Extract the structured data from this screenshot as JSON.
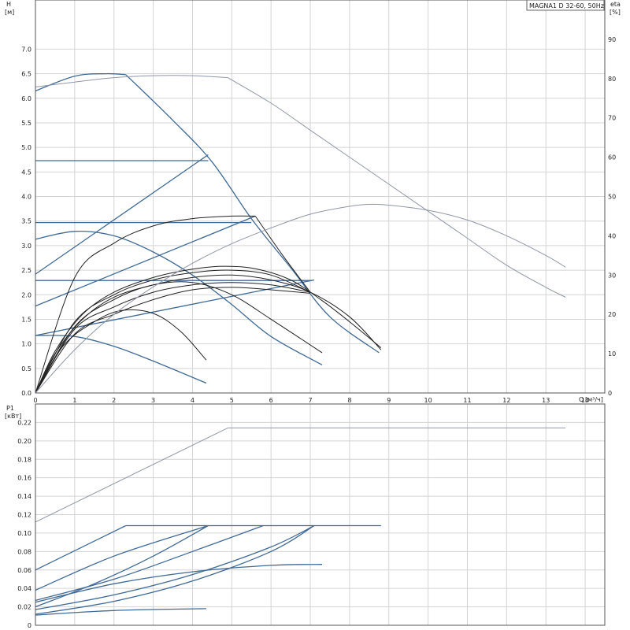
{
  "chart_data": [
    {
      "type": "line",
      "panel": "head",
      "title": "MAGNA1 D 32-60, 50Hz",
      "y_label": "H",
      "y_unit": "[м]",
      "y2_label": "eta",
      "y2_unit": "[%]",
      "x_label": "Q",
      "x_unit": "[м³/ч]",
      "xlim": [
        0,
        14.5
      ],
      "ylim": [
        0,
        8.0
      ],
      "y2lim": [
        0,
        100
      ],
      "x_ticks": [
        0,
        1,
        2,
        3,
        4,
        5,
        6,
        7,
        8,
        9,
        10,
        11,
        12,
        13,
        14
      ],
      "x_tick_labels": [
        "0",
        "1",
        "2",
        "3",
        "4",
        "5",
        "6",
        "7",
        "8",
        "9",
        "10",
        "11",
        "12",
        "13",
        "14"
      ],
      "y_ticks": [
        0,
        0.5,
        1.0,
        1.5,
        2.0,
        2.5,
        3.0,
        3.5,
        4.0,
        4.5,
        5.0,
        5.5,
        6.0,
        6.5,
        7.0
      ],
      "y_tick_labels": [
        "0.0",
        "0.5",
        "1.0",
        "1.5",
        "2.0",
        "2.5",
        "3.0",
        "3.5",
        "4.0",
        "4.5",
        "5.0",
        "5.5",
        "6.0",
        "6.5",
        "7.0"
      ],
      "y2_ticks": [
        0,
        10,
        20,
        30,
        40,
        50,
        60,
        70,
        80,
        90
      ],
      "y2_tick_labels": [
        "0",
        "10",
        "20",
        "30",
        "40",
        "50",
        "60",
        "70",
        "80",
        "90"
      ],
      "grid": true,
      "series": [
        {
          "kind": "blue",
          "x": [
            0,
            1,
            1.8,
            2.3
          ],
          "y": [
            6.15,
            6.45,
            6.5,
            6.48
          ]
        },
        {
          "kind": "blue",
          "x": [
            2.3,
            3.5,
            4.5,
            5.5,
            6.5,
            7.5,
            8.75
          ],
          "y": [
            6.48,
            5.55,
            4.7,
            3.55,
            2.55,
            1.55,
            0.82
          ]
        },
        {
          "kind": "blue",
          "x": [
            0,
            4.4
          ],
          "y": [
            4.73,
            4.73
          ]
        },
        {
          "kind": "blue",
          "x": [
            0,
            4.4
          ],
          "y": [
            2.42,
            4.85
          ]
        },
        {
          "kind": "blue",
          "x": [
            0,
            5.5
          ],
          "y": [
            3.47,
            3.47
          ]
        },
        {
          "kind": "blue",
          "x": [
            0,
            5.6
          ],
          "y": [
            1.77,
            3.6
          ]
        },
        {
          "kind": "blue",
          "x": [
            0,
            7.05
          ],
          "y": [
            2.29,
            2.29
          ]
        },
        {
          "kind": "blue",
          "x": [
            0,
            7.1
          ],
          "y": [
            1.17,
            2.3
          ]
        },
        {
          "kind": "blue",
          "x": [
            0,
            1,
            2,
            3,
            4,
            5,
            6,
            7.3
          ],
          "y": [
            3.13,
            3.29,
            3.2,
            2.87,
            2.4,
            1.8,
            1.15,
            0.57
          ]
        },
        {
          "kind": "blue",
          "x": [
            0,
            1,
            2,
            3,
            4.35
          ],
          "y": [
            1.17,
            1.15,
            0.95,
            0.65,
            0.2
          ]
        },
        {
          "kind": "black",
          "x": [
            0,
            1,
            2,
            3,
            4,
            5,
            5.6
          ],
          "y": [
            0,
            2.35,
            3.05,
            3.4,
            3.55,
            3.6,
            3.6
          ]
        },
        {
          "kind": "black",
          "x": [
            5.6,
            6.3,
            7.0
          ],
          "y": [
            3.6,
            2.8,
            2.05
          ]
        },
        {
          "kind": "black",
          "x": [
            0,
            0.5,
            1.2,
            2.0,
            3.0,
            4.0,
            4.8,
            5.6,
            6.5,
            7.3,
            8.0,
            8.8
          ],
          "y": [
            0,
            0.85,
            1.6,
            2.05,
            2.35,
            2.52,
            2.58,
            2.53,
            2.3,
            1.88,
            1.45,
            0.92
          ]
        },
        {
          "kind": "black",
          "x": [
            0,
            0.5,
            1.2,
            2.0,
            3.0,
            4.0,
            5.0,
            6.0,
            7.0,
            8.0,
            8.8
          ],
          "y": [
            0,
            0.8,
            1.5,
            1.95,
            2.2,
            2.35,
            2.4,
            2.3,
            2.05,
            1.55,
            0.88
          ]
        },
        {
          "kind": "black",
          "x": [
            0,
            1,
            2,
            3,
            4,
            5,
            6,
            7
          ],
          "y": [
            0,
            1.45,
            2.0,
            2.3,
            2.45,
            2.5,
            2.4,
            2.05
          ]
        },
        {
          "kind": "black",
          "x": [
            0,
            1,
            2,
            3,
            4,
            5,
            6,
            7
          ],
          "y": [
            0,
            1.3,
            1.75,
            2.05,
            2.2,
            2.25,
            2.2,
            2.05
          ]
        },
        {
          "kind": "black",
          "x": [
            0,
            1,
            2,
            3,
            4,
            5,
            6,
            7
          ],
          "y": [
            0,
            1.2,
            1.6,
            1.9,
            2.1,
            2.15,
            2.1,
            2.03
          ]
        },
        {
          "kind": "black",
          "x": [
            0,
            1,
            2,
            3,
            4,
            5,
            6,
            7.3
          ],
          "y": [
            0,
            1.35,
            1.9,
            2.2,
            2.25,
            2.0,
            1.5,
            0.82
          ]
        },
        {
          "kind": "black",
          "x": [
            0,
            0.7,
            1.5,
            2.2,
            3.0,
            3.7,
            4.35
          ],
          "y": [
            0,
            0.95,
            1.45,
            1.68,
            1.62,
            1.25,
            0.67
          ]
        },
        {
          "kind": "gray",
          "x": [
            0,
            1,
            2,
            3,
            4,
            4.9
          ],
          "y": [
            6.23,
            6.33,
            6.42,
            6.46,
            6.46,
            6.42
          ]
        },
        {
          "kind": "gray",
          "x": [
            4.9,
            6,
            7,
            8,
            9,
            10,
            11,
            12,
            13,
            13.5
          ],
          "y": [
            6.42,
            5.9,
            5.35,
            4.8,
            4.25,
            3.7,
            3.15,
            2.6,
            2.15,
            1.95
          ]
        },
        {
          "kind": "gray",
          "y_axis": "eta",
          "x": [
            0,
            1,
            2,
            3,
            4,
            5,
            6,
            7,
            8,
            8.5,
            9,
            10,
            11,
            12,
            13,
            13.5
          ],
          "y": [
            0,
            11,
            20,
            27,
            33,
            38,
            42,
            45.5,
            47.5,
            48,
            47.8,
            46.5,
            44,
            40,
            35,
            32
          ]
        }
      ]
    },
    {
      "type": "line",
      "panel": "power",
      "y_label": "P1",
      "y_unit": "[кВт]",
      "xlim": [
        0,
        14.5
      ],
      "ylim": [
        0,
        0.24
      ],
      "y_ticks": [
        0,
        0.02,
        0.04,
        0.06,
        0.08,
        0.1,
        0.12,
        0.14,
        0.16,
        0.18,
        0.2,
        0.22
      ],
      "y_tick_labels": [
        "0",
        "0.02",
        "0.04",
        "0.06",
        "0.08",
        "0.10",
        "0.12",
        "0.14",
        "0.16",
        "0.18",
        "0.20",
        "0.22"
      ],
      "grid": true,
      "series": [
        {
          "kind": "gray",
          "x": [
            0,
            4.9
          ],
          "y": [
            0.112,
            0.214
          ]
        },
        {
          "kind": "gray",
          "x": [
            4.9,
            13.5
          ],
          "y": [
            0.214,
            0.214
          ]
        },
        {
          "kind": "blue",
          "x": [
            0,
            2.3
          ],
          "y": [
            0.06,
            0.108
          ]
        },
        {
          "kind": "blue",
          "x": [
            2.3,
            8.8
          ],
          "y": [
            0.108,
            0.108
          ]
        },
        {
          "kind": "blue",
          "x": [
            0,
            2,
            4.4
          ],
          "y": [
            0.038,
            0.075,
            0.108
          ]
        },
        {
          "kind": "blue",
          "x": [
            0,
            2,
            4,
            5.8
          ],
          "y": [
            0.027,
            0.05,
            0.08,
            0.108
          ]
        },
        {
          "kind": "blue",
          "x": [
            0,
            1.5,
            3,
            4.4
          ],
          "y": [
            0.02,
            0.045,
            0.075,
            0.108
          ]
        },
        {
          "kind": "blue",
          "x": [
            0,
            2,
            4,
            6,
            7.1
          ],
          "y": [
            0.017,
            0.033,
            0.055,
            0.085,
            0.108
          ]
        },
        {
          "kind": "blue",
          "x": [
            0,
            2,
            4,
            6,
            7.1
          ],
          "y": [
            0.012,
            0.026,
            0.048,
            0.08,
            0.108
          ]
        },
        {
          "kind": "blue",
          "x": [
            0,
            2,
            4,
            6,
            7.3
          ],
          "y": [
            0.025,
            0.045,
            0.058,
            0.065,
            0.066
          ]
        },
        {
          "kind": "blue",
          "x": [
            0,
            2,
            4.35
          ],
          "y": [
            0.011,
            0.016,
            0.018
          ]
        }
      ]
    }
  ]
}
